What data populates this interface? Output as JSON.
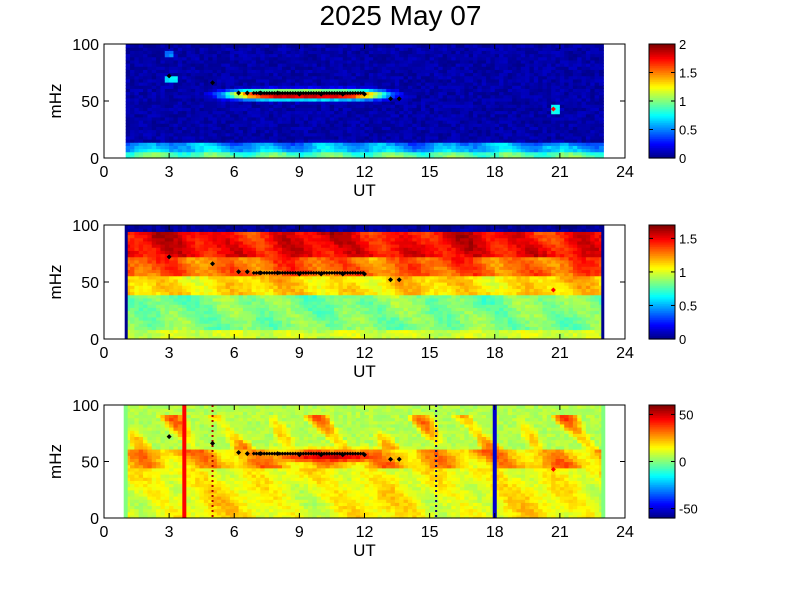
{
  "title": "2025 May 07",
  "chart_data": [
    {
      "type": "heatmap",
      "panel": "top",
      "xlabel": "UT",
      "ylabel": "mHz",
      "xlim": [
        0,
        24
      ],
      "ylim": [
        0,
        100
      ],
      "x_ticks": [
        0,
        3,
        6,
        9,
        12,
        15,
        18,
        21,
        24
      ],
      "y_ticks": [
        0,
        50,
        100
      ],
      "data_x_range": [
        1.0,
        23.0
      ],
      "colorbar": {
        "min": 0,
        "max": 2,
        "ticks": [
          0,
          0.5,
          1,
          1.5,
          2
        ],
        "tick_labels": [
          "0",
          "0.5",
          "1",
          "1.5",
          "2"
        ]
      },
      "markers": [
        {
          "x": 3.0,
          "y": 72
        },
        {
          "x": 5.0,
          "y": 66
        },
        {
          "x": 6.2,
          "y": 57
        },
        {
          "x": 6.6,
          "y": 57
        },
        {
          "x": 7.2,
          "y": 57
        },
        {
          "x": 8.0,
          "y": 57
        },
        {
          "x": 9.0,
          "y": 56
        },
        {
          "x": 10.0,
          "y": 56
        },
        {
          "x": 11.0,
          "y": 56
        },
        {
          "x": 12.0,
          "y": 56
        },
        {
          "x": 13.2,
          "y": 52
        },
        {
          "x": 13.6,
          "y": 52
        },
        {
          "x": 20.7,
          "y": 43
        }
      ]
    },
    {
      "type": "heatmap",
      "panel": "middle",
      "xlabel": "UT",
      "ylabel": "mHz",
      "xlim": [
        0,
        24
      ],
      "ylim": [
        0,
        100
      ],
      "x_ticks": [
        0,
        3,
        6,
        9,
        12,
        15,
        18,
        21,
        24
      ],
      "y_ticks": [
        0,
        50,
        100
      ],
      "data_x_range": [
        1.0,
        23.0
      ],
      "colorbar": {
        "min": 0,
        "max": 1.7,
        "ticks": [
          0,
          0.5,
          1,
          1.5
        ],
        "tick_labels": [
          "0",
          "0.5",
          "1",
          "1.5"
        ]
      },
      "markers": [
        {
          "x": 3.0,
          "y": 72
        },
        {
          "x": 5.0,
          "y": 66
        },
        {
          "x": 6.2,
          "y": 59
        },
        {
          "x": 6.6,
          "y": 59
        },
        {
          "x": 7.2,
          "y": 58
        },
        {
          "x": 8.0,
          "y": 58
        },
        {
          "x": 9.0,
          "y": 57
        },
        {
          "x": 10.0,
          "y": 57
        },
        {
          "x": 11.0,
          "y": 57
        },
        {
          "x": 12.0,
          "y": 57
        },
        {
          "x": 13.2,
          "y": 52
        },
        {
          "x": 13.6,
          "y": 52
        },
        {
          "x": 20.7,
          "y": 43
        }
      ]
    },
    {
      "type": "heatmap",
      "panel": "bottom",
      "xlabel": "UT",
      "ylabel": "mHz",
      "xlim": [
        0,
        24
      ],
      "ylim": [
        0,
        100
      ],
      "x_ticks": [
        0,
        3,
        6,
        9,
        12,
        15,
        18,
        21,
        24
      ],
      "y_ticks": [
        0,
        50,
        100
      ],
      "data_x_range": [
        1.0,
        23.0
      ],
      "colorbar": {
        "min": -60,
        "max": 60,
        "ticks": [
          -50,
          0,
          50
        ],
        "tick_labels": [
          "-50",
          "0",
          "50"
        ]
      },
      "vertical_lines": [
        {
          "x": 3.7,
          "color": "#ff0000",
          "style": "solid"
        },
        {
          "x": 5.0,
          "color": "#b00000",
          "style": "dotted"
        },
        {
          "x": 15.3,
          "color": "#000066",
          "style": "dotted"
        },
        {
          "x": 18.0,
          "color": "#0000cc",
          "style": "solid"
        }
      ],
      "markers": [
        {
          "x": 3.0,
          "y": 72
        },
        {
          "x": 5.0,
          "y": 66
        },
        {
          "x": 6.2,
          "y": 58
        },
        {
          "x": 6.6,
          "y": 57
        },
        {
          "x": 7.2,
          "y": 57
        },
        {
          "x": 8.0,
          "y": 57
        },
        {
          "x": 9.0,
          "y": 56
        },
        {
          "x": 10.0,
          "y": 56
        },
        {
          "x": 11.0,
          "y": 56
        },
        {
          "x": 12.0,
          "y": 56
        },
        {
          "x": 13.2,
          "y": 52
        },
        {
          "x": 13.6,
          "y": 52
        },
        {
          "x": 20.7,
          "y": 43
        }
      ]
    }
  ]
}
